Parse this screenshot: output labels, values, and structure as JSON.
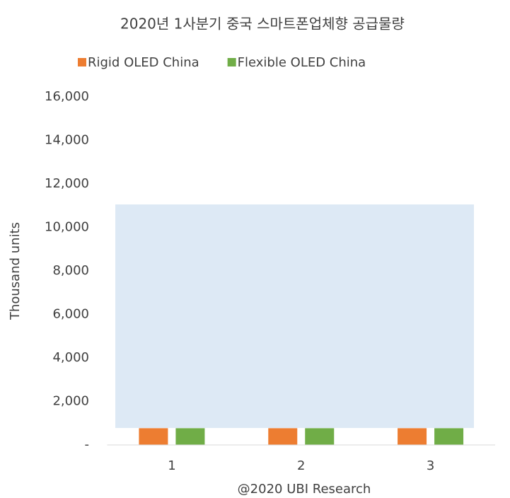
{
  "chart_data": {
    "type": "bar",
    "title": "2020년 1사분기 중국 스마트폰업체향 공급물량",
    "categories": [
      "1",
      "2",
      "3"
    ],
    "series": [
      {
        "name": "Rigid OLED China",
        "color": "#ed7d31",
        "values": [
          770,
          770,
          770
        ]
      },
      {
        "name": "Flexible OLED China",
        "color": "#70ad47",
        "values": [
          770,
          770,
          770
        ]
      }
    ],
    "ylim": [
      0,
      16000
    ],
    "yticks": [
      {
        "value": 0,
        "label": "-"
      },
      {
        "value": 2000,
        "label": "2,000"
      },
      {
        "value": 4000,
        "label": "4,000"
      },
      {
        "value": 6000,
        "label": "6,000"
      },
      {
        "value": 8000,
        "label": "8,000"
      },
      {
        "value": 10000,
        "label": "10,000"
      },
      {
        "value": 12000,
        "label": "12,000"
      },
      {
        "value": 14000,
        "label": "14,000"
      },
      {
        "value": 16000,
        "label": "16,000"
      }
    ],
    "ylabel": "Thousand units",
    "xlabel": "@2020 UBI Research",
    "legend": "top",
    "grid": false
  }
}
